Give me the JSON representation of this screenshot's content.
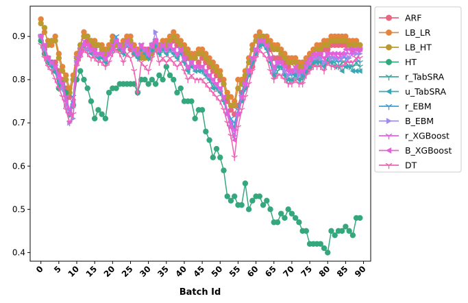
{
  "chart_data": {
    "type": "line",
    "xlabel": "Batch Id",
    "ylabel": "",
    "xlim": [
      -3,
      92
    ],
    "ylim": [
      0.38,
      0.97
    ],
    "xticks": [
      0,
      5,
      10,
      15,
      20,
      25,
      30,
      35,
      40,
      45,
      50,
      55,
      60,
      65,
      70,
      75,
      80,
      85,
      90
    ],
    "yticks": [
      0.4,
      0.5,
      0.6,
      0.7,
      0.8,
      0.9
    ],
    "legend_position": "outside-top-right",
    "grid": false,
    "x": [
      0,
      1,
      2,
      3,
      4,
      5,
      6,
      7,
      8,
      9,
      10,
      11,
      12,
      13,
      14,
      15,
      16,
      17,
      18,
      19,
      20,
      21,
      22,
      23,
      24,
      25,
      26,
      27,
      28,
      29,
      30,
      31,
      32,
      33,
      34,
      35,
      36,
      37,
      38,
      39,
      40,
      41,
      42,
      43,
      44,
      45,
      46,
      47,
      48,
      49,
      50,
      51,
      52,
      53,
      54,
      55,
      56,
      57,
      58,
      59,
      60,
      61,
      62,
      63,
      64,
      65,
      66,
      67,
      68,
      69,
      70,
      71,
      72,
      73,
      74,
      75,
      76,
      77,
      78,
      79,
      80,
      81,
      82,
      83,
      84,
      85,
      86,
      87,
      88,
      89
    ],
    "series": [
      {
        "name": "ARF",
        "color": "#e8667f",
        "marker": "circle",
        "values": [
          0.9,
          0.87,
          0.85,
          0.84,
          0.84,
          0.82,
          0.8,
          0.78,
          0.76,
          0.8,
          0.85,
          0.87,
          0.88,
          0.89,
          0.88,
          0.87,
          0.88,
          0.87,
          0.86,
          0.87,
          0.88,
          0.88,
          0.87,
          0.88,
          0.88,
          0.87,
          0.86,
          0.87,
          0.87,
          0.87,
          0.87,
          0.88,
          0.89,
          0.88,
          0.88,
          0.89,
          0.89,
          0.89,
          0.88,
          0.88,
          0.86,
          0.85,
          0.85,
          0.85,
          0.84,
          0.85,
          0.84,
          0.83,
          0.82,
          0.81,
          0.8,
          0.79,
          0.75,
          0.73,
          0.72,
          0.74,
          0.77,
          0.8,
          0.82,
          0.83,
          0.86,
          0.88,
          0.89,
          0.89,
          0.87,
          0.85,
          0.85,
          0.85,
          0.84,
          0.83,
          0.82,
          0.82,
          0.82,
          0.81,
          0.82,
          0.83,
          0.84,
          0.85,
          0.86,
          0.87,
          0.87,
          0.88,
          0.88,
          0.88,
          0.88,
          0.88,
          0.88,
          0.87,
          0.88,
          0.87
        ]
      },
      {
        "name": "LB_LR",
        "color": "#e5843d",
        "marker": "circle",
        "values": [
          0.94,
          0.91,
          0.89,
          0.88,
          0.9,
          0.86,
          0.83,
          0.81,
          0.78,
          0.81,
          0.86,
          0.88,
          0.91,
          0.9,
          0.89,
          0.89,
          0.88,
          0.88,
          0.87,
          0.88,
          0.9,
          0.89,
          0.88,
          0.89,
          0.9,
          0.9,
          0.88,
          0.87,
          0.86,
          0.86,
          0.86,
          0.87,
          0.88,
          0.88,
          0.89,
          0.89,
          0.9,
          0.91,
          0.9,
          0.89,
          0.88,
          0.87,
          0.86,
          0.86,
          0.87,
          0.87,
          0.86,
          0.85,
          0.84,
          0.83,
          0.82,
          0.8,
          0.77,
          0.76,
          0.75,
          0.8,
          0.8,
          0.82,
          0.85,
          0.88,
          0.9,
          0.91,
          0.9,
          0.9,
          0.89,
          0.88,
          0.88,
          0.87,
          0.86,
          0.85,
          0.85,
          0.85,
          0.84,
          0.84,
          0.85,
          0.86,
          0.87,
          0.88,
          0.88,
          0.89,
          0.89,
          0.9,
          0.9,
          0.9,
          0.9,
          0.9,
          0.89,
          0.89,
          0.89,
          0.88
        ]
      },
      {
        "name": "LB_HT",
        "color": "#bc9a2f",
        "marker": "circle",
        "values": [
          0.93,
          0.92,
          0.88,
          0.89,
          0.89,
          0.85,
          0.82,
          0.8,
          0.77,
          0.8,
          0.85,
          0.88,
          0.9,
          0.9,
          0.89,
          0.88,
          0.88,
          0.87,
          0.86,
          0.87,
          0.89,
          0.88,
          0.87,
          0.88,
          0.89,
          0.89,
          0.87,
          0.86,
          0.85,
          0.85,
          0.85,
          0.86,
          0.87,
          0.87,
          0.88,
          0.88,
          0.89,
          0.9,
          0.89,
          0.88,
          0.87,
          0.86,
          0.85,
          0.85,
          0.86,
          0.86,
          0.85,
          0.84,
          0.83,
          0.82,
          0.81,
          0.79,
          0.76,
          0.74,
          0.74,
          0.78,
          0.79,
          0.81,
          0.84,
          0.87,
          0.89,
          0.9,
          0.9,
          0.89,
          0.88,
          0.87,
          0.87,
          0.86,
          0.85,
          0.84,
          0.84,
          0.84,
          0.83,
          0.83,
          0.84,
          0.85,
          0.86,
          0.87,
          0.87,
          0.88,
          0.88,
          0.89,
          0.89,
          0.89,
          0.89,
          0.89,
          0.88,
          0.88,
          0.88,
          0.88
        ]
      },
      {
        "name": "HT",
        "color": "#35a77d",
        "marker": "circle",
        "values": [
          0.89,
          0.86,
          0.84,
          0.84,
          0.82,
          0.78,
          0.79,
          0.77,
          0.72,
          0.74,
          0.8,
          0.82,
          0.8,
          0.78,
          0.75,
          0.71,
          0.73,
          0.72,
          0.71,
          0.77,
          0.78,
          0.78,
          0.79,
          0.79,
          0.79,
          0.79,
          0.79,
          0.77,
          0.8,
          0.8,
          0.79,
          0.8,
          0.79,
          0.81,
          0.8,
          0.83,
          0.81,
          0.8,
          0.77,
          0.78,
          0.75,
          0.75,
          0.75,
          0.71,
          0.73,
          0.73,
          0.68,
          0.66,
          0.62,
          0.64,
          0.62,
          0.59,
          0.53,
          0.52,
          0.53,
          0.51,
          0.51,
          0.56,
          0.5,
          0.52,
          0.53,
          0.53,
          0.51,
          0.52,
          0.5,
          0.47,
          0.47,
          0.49,
          0.48,
          0.5,
          0.49,
          0.48,
          0.47,
          0.45,
          0.45,
          0.42,
          0.42,
          0.42,
          0.42,
          0.41,
          0.4,
          0.45,
          0.44,
          0.45,
          0.45,
          0.46,
          0.45,
          0.44,
          0.48,
          0.48
        ]
      },
      {
        "name": "r_TabSRA",
        "color": "#3ba79e",
        "marker": "tri_down",
        "values": [
          0.9,
          0.88,
          0.85,
          0.83,
          0.82,
          0.8,
          0.78,
          0.75,
          0.72,
          0.74,
          0.84,
          0.86,
          0.88,
          0.87,
          0.87,
          0.86,
          0.85,
          0.86,
          0.84,
          0.86,
          0.87,
          0.9,
          0.88,
          0.86,
          0.89,
          0.88,
          0.87,
          0.85,
          0.88,
          0.87,
          0.85,
          0.87,
          0.88,
          0.86,
          0.87,
          0.86,
          0.87,
          0.86,
          0.85,
          0.87,
          0.84,
          0.82,
          0.84,
          0.83,
          0.83,
          0.82,
          0.81,
          0.8,
          0.79,
          0.78,
          0.77,
          0.75,
          0.73,
          0.7,
          0.69,
          0.72,
          0.76,
          0.78,
          0.82,
          0.84,
          0.87,
          0.88,
          0.89,
          0.87,
          0.84,
          0.8,
          0.82,
          0.83,
          0.81,
          0.79,
          0.8,
          0.81,
          0.8,
          0.8,
          0.82,
          0.83,
          0.84,
          0.84,
          0.84,
          0.83,
          0.85,
          0.84,
          0.84,
          0.83,
          0.84,
          0.84,
          0.83,
          0.83,
          0.84,
          0.83
        ]
      },
      {
        "name": "u_TabSRA",
        "color": "#3aa7b5",
        "marker": "tri_left",
        "values": [
          0.9,
          0.87,
          0.84,
          0.83,
          0.82,
          0.79,
          0.78,
          0.75,
          0.73,
          0.75,
          0.84,
          0.86,
          0.88,
          0.87,
          0.86,
          0.86,
          0.85,
          0.85,
          0.84,
          0.86,
          0.87,
          0.89,
          0.87,
          0.86,
          0.88,
          0.88,
          0.86,
          0.85,
          0.87,
          0.86,
          0.85,
          0.87,
          0.88,
          0.86,
          0.87,
          0.86,
          0.87,
          0.86,
          0.85,
          0.86,
          0.84,
          0.82,
          0.83,
          0.82,
          0.82,
          0.82,
          0.81,
          0.8,
          0.78,
          0.78,
          0.77,
          0.75,
          0.72,
          0.7,
          0.69,
          0.72,
          0.75,
          0.78,
          0.81,
          0.84,
          0.86,
          0.88,
          0.88,
          0.87,
          0.84,
          0.81,
          0.83,
          0.83,
          0.81,
          0.8,
          0.8,
          0.81,
          0.8,
          0.81,
          0.82,
          0.83,
          0.84,
          0.84,
          0.84,
          0.83,
          0.84,
          0.84,
          0.83,
          0.83,
          0.82,
          0.83,
          0.83,
          0.82,
          0.82,
          0.82
        ]
      },
      {
        "name": "r_EBM",
        "color": "#3c9fd6",
        "marker": "tri_down",
        "values": [
          0.9,
          0.88,
          0.85,
          0.84,
          0.83,
          0.8,
          0.79,
          0.76,
          0.73,
          0.76,
          0.85,
          0.87,
          0.89,
          0.88,
          0.87,
          0.87,
          0.86,
          0.86,
          0.85,
          0.86,
          0.88,
          0.9,
          0.88,
          0.87,
          0.89,
          0.88,
          0.87,
          0.86,
          0.88,
          0.87,
          0.86,
          0.88,
          0.89,
          0.87,
          0.88,
          0.87,
          0.88,
          0.87,
          0.86,
          0.87,
          0.85,
          0.83,
          0.84,
          0.83,
          0.83,
          0.83,
          0.82,
          0.81,
          0.8,
          0.79,
          0.78,
          0.76,
          0.73,
          0.71,
          0.7,
          0.73,
          0.77,
          0.79,
          0.82,
          0.85,
          0.87,
          0.89,
          0.89,
          0.88,
          0.85,
          0.82,
          0.84,
          0.84,
          0.82,
          0.81,
          0.81,
          0.82,
          0.81,
          0.81,
          0.83,
          0.84,
          0.85,
          0.85,
          0.85,
          0.84,
          0.86,
          0.85,
          0.85,
          0.84,
          0.85,
          0.85,
          0.84,
          0.84,
          0.85,
          0.84
        ]
      },
      {
        "name": "B_EBM",
        "color": "#a08ce8",
        "marker": "tri_right",
        "values": [
          0.9,
          0.87,
          0.85,
          0.84,
          0.83,
          0.81,
          0.78,
          0.74,
          0.7,
          0.71,
          0.84,
          0.86,
          0.88,
          0.87,
          0.87,
          0.86,
          0.86,
          0.86,
          0.85,
          0.86,
          0.87,
          0.89,
          0.88,
          0.87,
          0.88,
          0.88,
          0.87,
          0.86,
          0.88,
          0.87,
          0.86,
          0.88,
          0.91,
          0.87,
          0.88,
          0.87,
          0.88,
          0.87,
          0.86,
          0.87,
          0.85,
          0.83,
          0.84,
          0.83,
          0.83,
          0.83,
          0.82,
          0.81,
          0.8,
          0.79,
          0.78,
          0.76,
          0.72,
          0.69,
          0.67,
          0.72,
          0.76,
          0.79,
          0.82,
          0.85,
          0.87,
          0.89,
          0.89,
          0.88,
          0.85,
          0.82,
          0.84,
          0.84,
          0.82,
          0.81,
          0.82,
          0.82,
          0.81,
          0.82,
          0.83,
          0.84,
          0.85,
          0.85,
          0.85,
          0.84,
          0.86,
          0.85,
          0.85,
          0.85,
          0.85,
          0.86,
          0.85,
          0.86,
          0.86,
          0.86
        ]
      },
      {
        "name": "r_XGBoost",
        "color": "#e45fe8",
        "marker": "tri_down",
        "values": [
          0.9,
          0.88,
          0.85,
          0.84,
          0.83,
          0.8,
          0.79,
          0.76,
          0.73,
          0.75,
          0.85,
          0.87,
          0.89,
          0.88,
          0.87,
          0.87,
          0.86,
          0.86,
          0.85,
          0.86,
          0.88,
          0.89,
          0.88,
          0.87,
          0.89,
          0.88,
          0.87,
          0.86,
          0.88,
          0.87,
          0.86,
          0.88,
          0.89,
          0.87,
          0.88,
          0.87,
          0.88,
          0.87,
          0.86,
          0.87,
          0.85,
          0.83,
          0.84,
          0.83,
          0.83,
          0.83,
          0.82,
          0.81,
          0.8,
          0.79,
          0.78,
          0.76,
          0.73,
          0.7,
          0.68,
          0.72,
          0.76,
          0.79,
          0.82,
          0.85,
          0.87,
          0.89,
          0.89,
          0.88,
          0.85,
          0.83,
          0.84,
          0.84,
          0.83,
          0.82,
          0.82,
          0.83,
          0.82,
          0.82,
          0.83,
          0.84,
          0.85,
          0.86,
          0.86,
          0.85,
          0.86,
          0.86,
          0.86,
          0.85,
          0.86,
          0.86,
          0.86,
          0.86,
          0.87,
          0.87
        ]
      },
      {
        "name": "B_XGBoost",
        "color": "#e55fd9",
        "marker": "tri_left",
        "values": [
          0.9,
          0.88,
          0.85,
          0.84,
          0.83,
          0.81,
          0.79,
          0.75,
          0.72,
          0.74,
          0.84,
          0.86,
          0.88,
          0.88,
          0.87,
          0.86,
          0.86,
          0.86,
          0.85,
          0.86,
          0.87,
          0.89,
          0.88,
          0.87,
          0.89,
          0.88,
          0.87,
          0.86,
          0.88,
          0.87,
          0.86,
          0.88,
          0.89,
          0.87,
          0.88,
          0.87,
          0.88,
          0.87,
          0.86,
          0.87,
          0.85,
          0.83,
          0.84,
          0.83,
          0.83,
          0.83,
          0.82,
          0.81,
          0.8,
          0.79,
          0.78,
          0.76,
          0.72,
          0.69,
          0.66,
          0.72,
          0.76,
          0.79,
          0.82,
          0.85,
          0.87,
          0.89,
          0.89,
          0.88,
          0.85,
          0.83,
          0.84,
          0.84,
          0.83,
          0.82,
          0.82,
          0.83,
          0.82,
          0.82,
          0.84,
          0.85,
          0.86,
          0.86,
          0.86,
          0.85,
          0.86,
          0.86,
          0.86,
          0.86,
          0.86,
          0.87,
          0.87,
          0.87,
          0.87,
          0.87
        ]
      },
      {
        "name": "DT",
        "color": "#f061b4",
        "marker": "tri_down",
        "values": [
          0.88,
          0.85,
          0.83,
          0.82,
          0.8,
          0.78,
          0.76,
          0.73,
          0.7,
          0.72,
          0.83,
          0.85,
          0.87,
          0.86,
          0.85,
          0.85,
          0.84,
          0.84,
          0.83,
          0.84,
          0.86,
          0.87,
          0.86,
          0.84,
          0.86,
          0.85,
          0.82,
          0.77,
          0.84,
          0.83,
          0.82,
          0.85,
          0.87,
          0.84,
          0.85,
          0.84,
          0.85,
          0.84,
          0.83,
          0.84,
          0.82,
          0.8,
          0.81,
          0.8,
          0.8,
          0.8,
          0.79,
          0.78,
          0.77,
          0.76,
          0.75,
          0.73,
          0.7,
          0.67,
          0.62,
          0.69,
          0.73,
          0.76,
          0.79,
          0.82,
          0.85,
          0.87,
          0.86,
          0.85,
          0.82,
          0.8,
          0.81,
          0.81,
          0.8,
          0.79,
          0.79,
          0.8,
          0.79,
          0.79,
          0.81,
          0.82,
          0.83,
          0.83,
          0.83,
          0.82,
          0.84,
          0.83,
          0.83,
          0.83,
          0.83,
          0.84,
          0.84,
          0.84,
          0.85,
          0.85
        ]
      }
    ]
  }
}
